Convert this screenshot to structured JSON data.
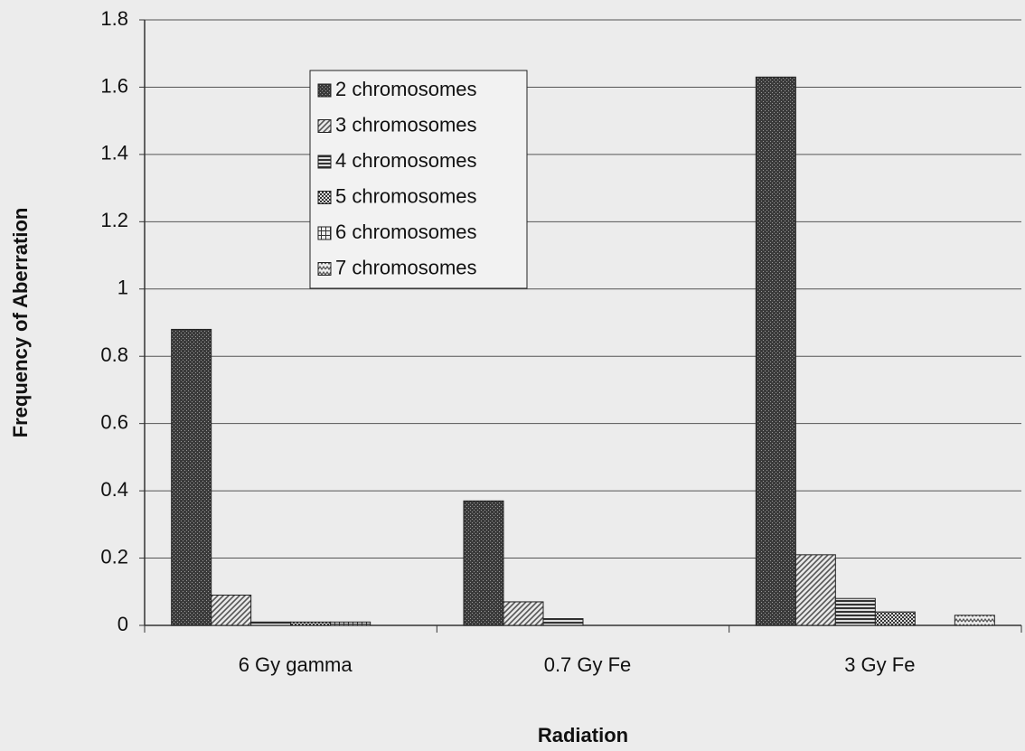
{
  "chart_data": {
    "type": "bar",
    "x_label": "Radiation",
    "y_label": "Frequency of Aberration",
    "categories": [
      "6 Gy gamma",
      "0.7 Gy Fe",
      "3 Gy Fe"
    ],
    "series": [
      {
        "name": "2 chromosomes",
        "color": "#3a3a3a",
        "pattern": "dense",
        "values": [
          0.88,
          0.37,
          1.63
        ]
      },
      {
        "name": "3 chromosomes",
        "color": "#555555",
        "pattern": "diagonal",
        "values": [
          0.09,
          0.07,
          0.21
        ]
      },
      {
        "name": "4 chromosomes",
        "color": "#333333",
        "pattern": "horizontal",
        "values": [
          0.01,
          0.02,
          0.08
        ]
      },
      {
        "name": "5 chromosomes",
        "color": "#333333",
        "pattern": "checker",
        "values": [
          0.01,
          0,
          0.04
        ]
      },
      {
        "name": "6 chromosomes",
        "color": "#333333",
        "pattern": "grid",
        "values": [
          0.01,
          0,
          0
        ]
      },
      {
        "name": "7 chromosomes",
        "color": "#555555",
        "pattern": "zigzag",
        "values": [
          0,
          0,
          0.03
        ]
      }
    ],
    "ylim": [
      0,
      1.8
    ],
    "yticks": [
      0,
      0.2,
      0.4,
      0.6,
      0.8,
      1,
      1.2,
      1.4,
      1.6,
      1.8
    ],
    "grid": true,
    "legend": "upper left"
  }
}
